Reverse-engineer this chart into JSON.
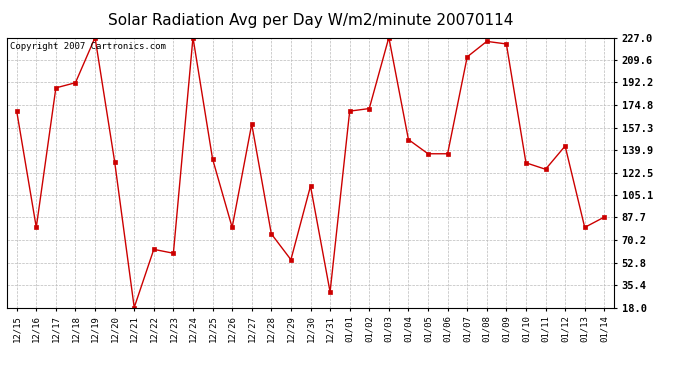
{
  "title": "Solar Radiation Avg per Day W/m2/minute 20070114",
  "copyright_text": "Copyright 2007 Cartronics.com",
  "x_labels": [
    "12/15",
    "12/16",
    "12/17",
    "12/18",
    "12/19",
    "12/20",
    "12/21",
    "12/22",
    "12/23",
    "12/24",
    "12/25",
    "12/26",
    "12/27",
    "12/28",
    "12/29",
    "12/30",
    "12/31",
    "01/01",
    "01/02",
    "01/03",
    "01/04",
    "01/05",
    "01/06",
    "01/07",
    "01/08",
    "01/09",
    "01/10",
    "01/11",
    "01/12",
    "01/13",
    "01/14"
  ],
  "y_values": [
    170.0,
    80.0,
    188.0,
    192.0,
    227.0,
    131.0,
    18.0,
    63.0,
    60.0,
    227.0,
    133.0,
    80.0,
    160.0,
    75.0,
    55.0,
    112.0,
    30.0,
    170.0,
    172.0,
    227.0,
    148.0,
    137.0,
    137.0,
    212.0,
    224.0,
    222.0,
    130.0,
    125.0,
    143.0,
    80.0,
    88.0
  ],
  "y_ticks": [
    18.0,
    35.4,
    52.8,
    70.2,
    87.7,
    105.1,
    122.5,
    139.9,
    157.3,
    174.8,
    192.2,
    209.6,
    227.0
  ],
  "ylim": [
    18.0,
    227.0
  ],
  "line_color": "#cc0000",
  "marker": "s",
  "marker_size": 2.5,
  "bg_color": "#ffffff",
  "grid_color": "#bbbbbb",
  "title_fontsize": 11,
  "copyright_fontsize": 6.5,
  "tick_fontsize": 7.5,
  "xtick_fontsize": 6.5
}
